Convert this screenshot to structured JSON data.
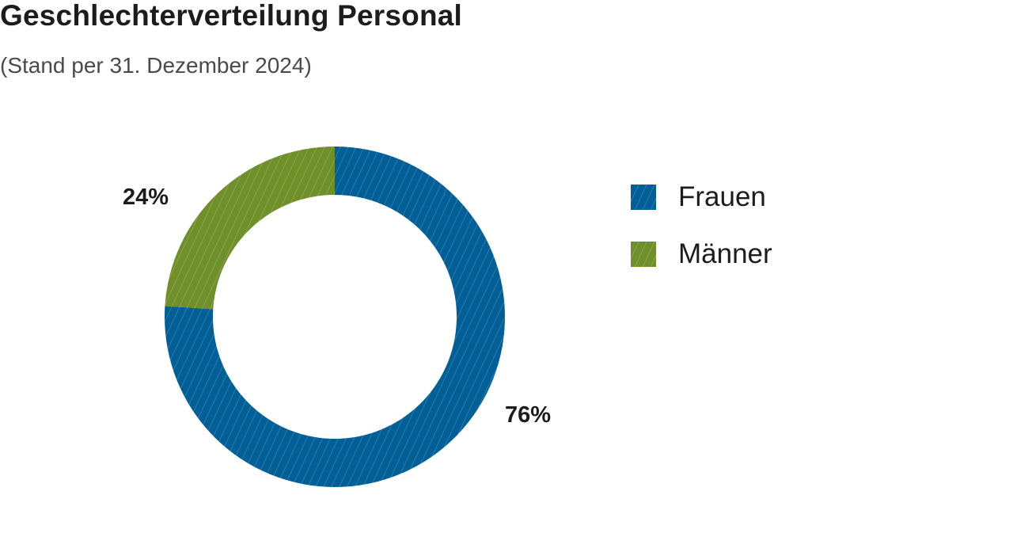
{
  "chart_data": {
    "type": "pie",
    "title": "Geschlechterverteilung Personal",
    "subtitle": "(Stand per 31. Dezember 2024)",
    "series": [
      {
        "name": "Frauen",
        "value": 76,
        "label": "76%",
        "color": "#005f96"
      },
      {
        "name": "Männer",
        "value": 24,
        "label": "24%",
        "color": "#6f8f2a"
      }
    ],
    "style": "donut",
    "pattern": "diagonal-hatch",
    "legend_position": "right"
  }
}
